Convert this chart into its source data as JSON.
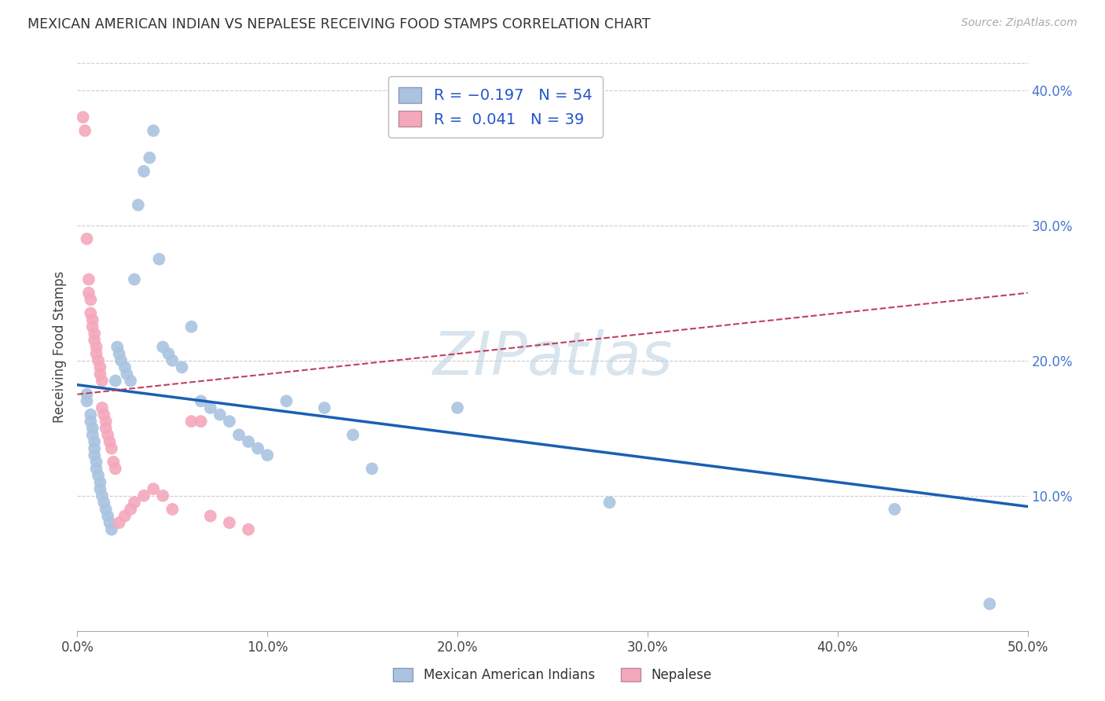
{
  "title": "MEXICAN AMERICAN INDIAN VS NEPALESE RECEIVING FOOD STAMPS CORRELATION CHART",
  "source": "Source: ZipAtlas.com",
  "ylabel": "Receiving Food Stamps",
  "xlabel_ticks": [
    "0.0%",
    "10.0%",
    "20.0%",
    "30.0%",
    "40.0%",
    "50.0%"
  ],
  "xlabel_vals": [
    0.0,
    0.1,
    0.2,
    0.3,
    0.4,
    0.5
  ],
  "ylabel_ticks": [
    "10.0%",
    "20.0%",
    "30.0%",
    "40.0%"
  ],
  "ylabel_vals": [
    0.1,
    0.2,
    0.3,
    0.4
  ],
  "xmin": 0.0,
  "xmax": 0.5,
  "ymin": 0.0,
  "ymax": 0.42,
  "blue_R": -0.197,
  "blue_N": 54,
  "pink_R": 0.041,
  "pink_N": 39,
  "legend_label_blue": "Mexican American Indians",
  "legend_label_pink": "Nepalese",
  "watermark": "ZIPatlas",
  "dot_color_blue": "#aac4e0",
  "dot_color_pink": "#f4a8bc",
  "line_color_blue": "#1a5fb4",
  "line_color_pink": "#c04060",
  "background_color": "#ffffff",
  "grid_color": "#cccccc",
  "blue_scatter_x": [
    0.005,
    0.005,
    0.007,
    0.007,
    0.008,
    0.008,
    0.009,
    0.009,
    0.009,
    0.01,
    0.01,
    0.011,
    0.012,
    0.012,
    0.013,
    0.014,
    0.015,
    0.016,
    0.017,
    0.018,
    0.02,
    0.021,
    0.022,
    0.023,
    0.025,
    0.026,
    0.028,
    0.03,
    0.032,
    0.035,
    0.038,
    0.04,
    0.043,
    0.045,
    0.048,
    0.05,
    0.055,
    0.06,
    0.065,
    0.07,
    0.075,
    0.08,
    0.085,
    0.09,
    0.095,
    0.1,
    0.11,
    0.13,
    0.145,
    0.155,
    0.2,
    0.28,
    0.43,
    0.48
  ],
  "blue_scatter_y": [
    0.175,
    0.17,
    0.16,
    0.155,
    0.15,
    0.145,
    0.14,
    0.135,
    0.13,
    0.125,
    0.12,
    0.115,
    0.11,
    0.105,
    0.1,
    0.095,
    0.09,
    0.085,
    0.08,
    0.075,
    0.185,
    0.21,
    0.205,
    0.2,
    0.195,
    0.19,
    0.185,
    0.26,
    0.315,
    0.34,
    0.35,
    0.37,
    0.275,
    0.21,
    0.205,
    0.2,
    0.195,
    0.225,
    0.17,
    0.165,
    0.16,
    0.155,
    0.145,
    0.14,
    0.135,
    0.13,
    0.17,
    0.165,
    0.145,
    0.12,
    0.165,
    0.095,
    0.09,
    0.02
  ],
  "pink_scatter_x": [
    0.003,
    0.004,
    0.005,
    0.006,
    0.006,
    0.007,
    0.007,
    0.008,
    0.008,
    0.009,
    0.009,
    0.01,
    0.01,
    0.011,
    0.012,
    0.012,
    0.013,
    0.013,
    0.014,
    0.015,
    0.015,
    0.016,
    0.017,
    0.018,
    0.019,
    0.02,
    0.022,
    0.025,
    0.028,
    0.03,
    0.035,
    0.04,
    0.045,
    0.05,
    0.06,
    0.065,
    0.07,
    0.08,
    0.09
  ],
  "pink_scatter_y": [
    0.38,
    0.37,
    0.29,
    0.26,
    0.25,
    0.245,
    0.235,
    0.23,
    0.225,
    0.22,
    0.215,
    0.21,
    0.205,
    0.2,
    0.195,
    0.19,
    0.185,
    0.165,
    0.16,
    0.155,
    0.15,
    0.145,
    0.14,
    0.135,
    0.125,
    0.12,
    0.08,
    0.085,
    0.09,
    0.095,
    0.1,
    0.105,
    0.1,
    0.09,
    0.155,
    0.155,
    0.085,
    0.08,
    0.075
  ],
  "blue_line_x0": 0.0,
  "blue_line_y0": 0.182,
  "blue_line_x1": 0.5,
  "blue_line_y1": 0.092,
  "pink_line_x0": 0.0,
  "pink_line_y0": 0.175,
  "pink_line_x1": 0.5,
  "pink_line_y1": 0.25
}
